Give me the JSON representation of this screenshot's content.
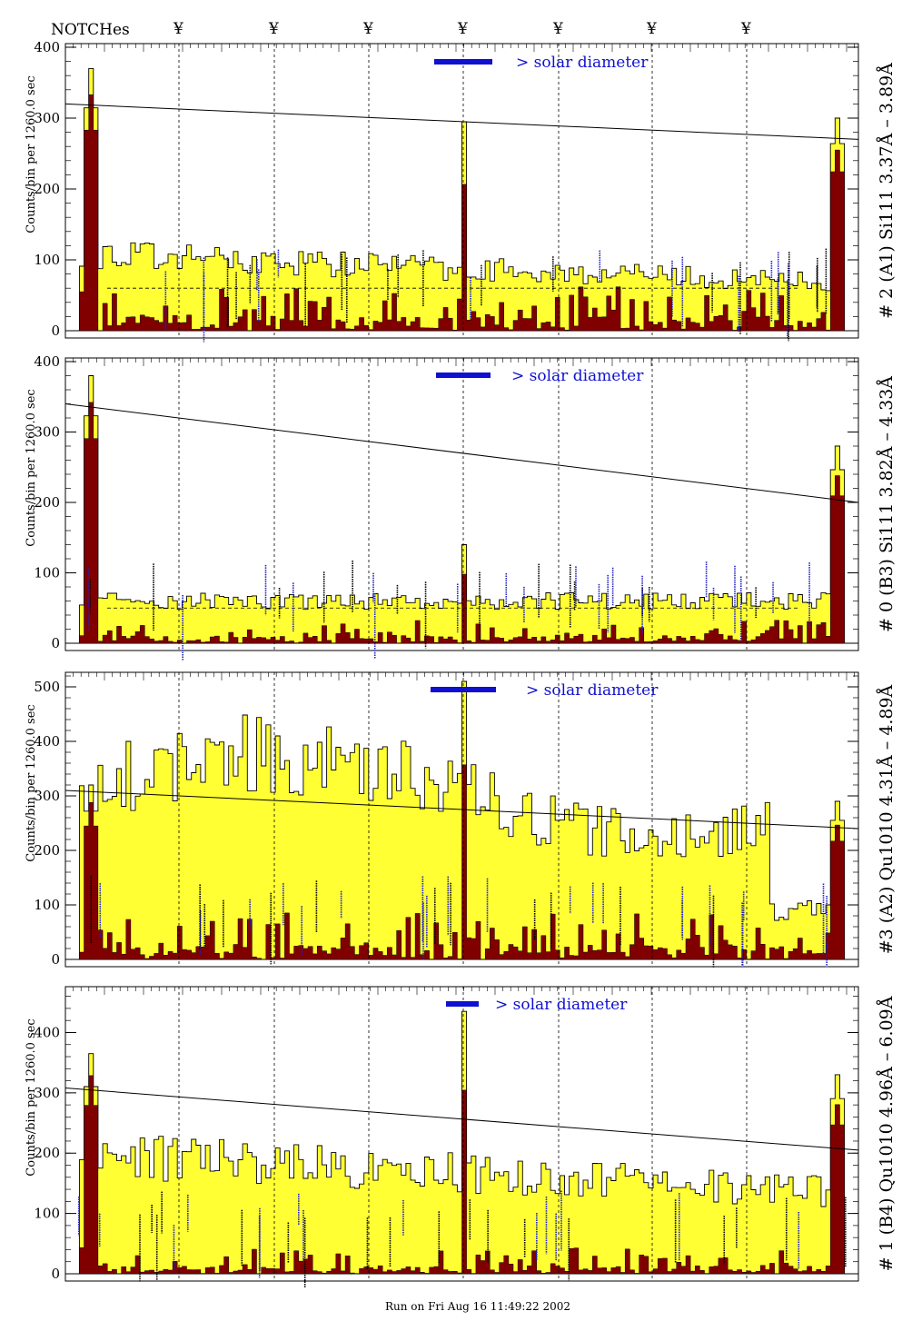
{
  "header": {
    "label": "NOTCHes",
    "notch_symbol": "¥",
    "notch_count": 7
  },
  "footer": {
    "run_text": "Run on Fri Aug 16 11:49:22 2002"
  },
  "solar_label": "> solar diameter",
  "colors": {
    "fill_total": "#ffff33",
    "fill_sub": "#800000",
    "solar_bar": "#1010d0",
    "label_blue": "#2020c0",
    "label_black": "#000000"
  },
  "chart_data": [
    {
      "type": "area",
      "right_label": "# 2 (A1) Si111  3.37Å – 3.89Å",
      "ylabel": "Counts/bin per   1260.0 sec",
      "ylim": [
        0,
        400
      ],
      "yticks": [
        0,
        100,
        200,
        300,
        400
      ],
      "trend_line": [
        320,
        270
      ],
      "dashed_level": 60,
      "peak_left": 370,
      "peak_center": 295,
      "peak_right": 300,
      "typical_total": 95,
      "typical_sub": 30
    },
    {
      "type": "area",
      "right_label": "# 0 (B3) Si111  3.82Å – 4.33Å",
      "ylabel": "Counts/bin per   1260.0 sec",
      "ylim": [
        0,
        400
      ],
      "yticks": [
        0,
        100,
        200,
        300,
        400
      ],
      "trend_line": [
        340,
        200
      ],
      "dashed_level": 50,
      "peak_left": 380,
      "peak_center": 140,
      "peak_right": 280,
      "typical_total": 60,
      "typical_sub": 15
    },
    {
      "type": "area",
      "right_label": "#3 (A2) Qu1010  4.31Å – 4.89Å",
      "ylabel": "Counts/bin per   1260.0 sec",
      "ylim": [
        0,
        520
      ],
      "yticks": [
        0,
        100,
        200,
        300,
        400,
        500
      ],
      "trend_line": [
        310,
        240
      ],
      "dashed_level": 0,
      "peak_left": 320,
      "peak_center": 510,
      "peak_right": 290,
      "typical_total": 300,
      "typical_sub": 40
    },
    {
      "type": "area",
      "right_label": "# 1 (B4) Qu1010 4.96Å – 6.09Å",
      "ylabel": "Counts/bin per   1260.0 sec",
      "ylim": [
        0,
        470
      ],
      "yticks": [
        0,
        100,
        200,
        300,
        400
      ],
      "trend_line": [
        308,
        205
      ],
      "dashed_level": 0,
      "peak_left": 365,
      "peak_center": 435,
      "peak_right": 330,
      "typical_total": 190,
      "typical_sub": 20
    }
  ]
}
